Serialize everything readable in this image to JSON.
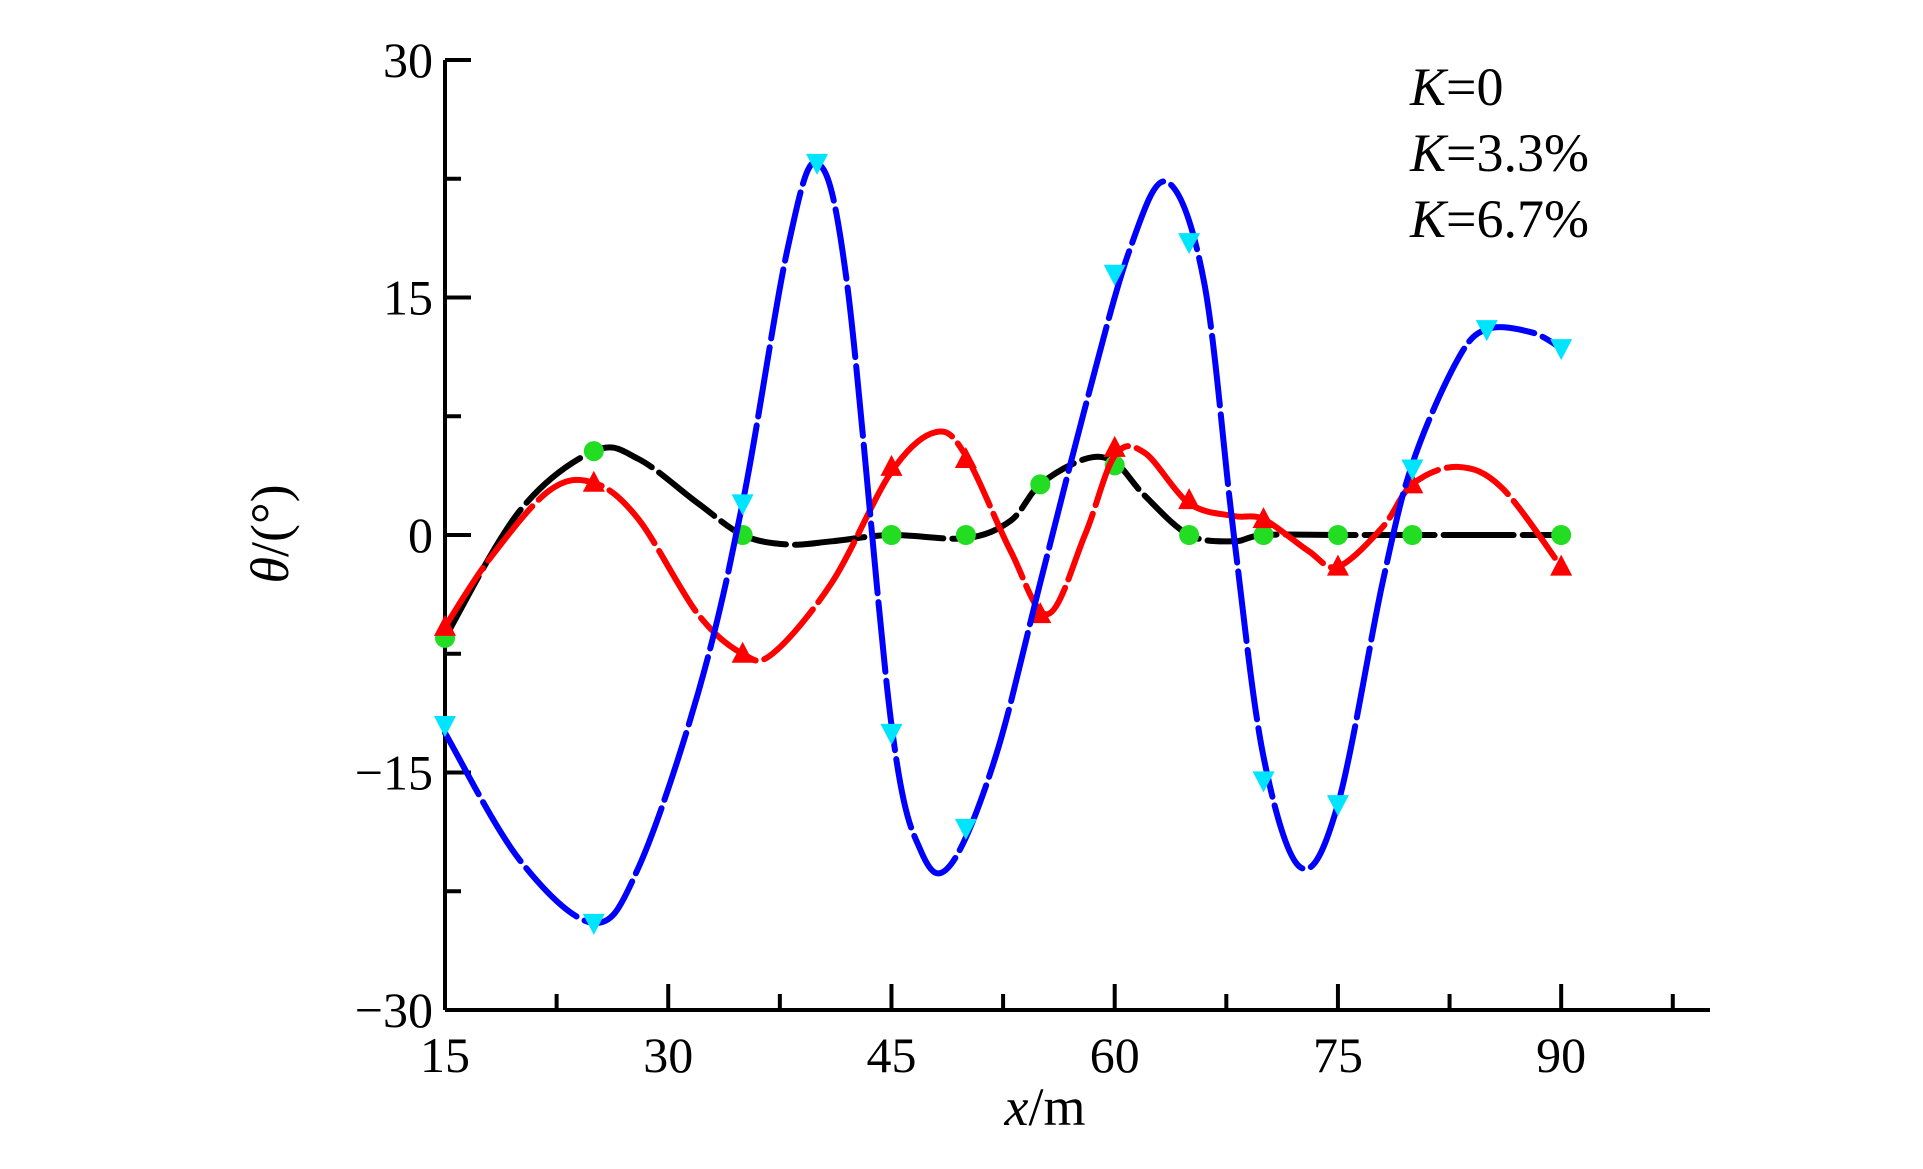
{
  "chart_data": {
    "type": "line",
    "xlabel": "x/m",
    "ylabel": "θ/(°)",
    "xlim": [
      15,
      100
    ],
    "ylim": [
      -30,
      30
    ],
    "xticks": [
      15,
      30,
      45,
      60,
      75,
      90
    ],
    "yticks": [
      -30,
      -15,
      0,
      15,
      30
    ],
    "grid": false,
    "legend_position": "top-right",
    "legend": [
      "K=0",
      "K=3.3%",
      "K=6.7%"
    ],
    "series": [
      {
        "name": "K=0",
        "line_color": "#000000",
        "marker": "circle",
        "marker_color": "#22dd22",
        "x": [
          15,
          20,
          25,
          28,
          32,
          35,
          38,
          41,
          45,
          50,
          53,
          55,
          58,
          60,
          62,
          65,
          68,
          70,
          75,
          80,
          85,
          90
        ],
        "y": [
          -6.5,
          1.5,
          5.3,
          4.8,
          2.0,
          0.0,
          -0.6,
          -0.4,
          0.0,
          -0.2,
          0.9,
          3.2,
          4.8,
          4.6,
          2.5,
          0.0,
          -0.4,
          0.0,
          0.0,
          0.0,
          0.0,
          0.0
        ],
        "marker_x": [
          15,
          25,
          35,
          45,
          50,
          55,
          60,
          65,
          70,
          75,
          80,
          90
        ],
        "marker_y": [
          -6.5,
          5.3,
          0.0,
          0.0,
          0.0,
          3.2,
          4.4,
          0.0,
          0.0,
          0.0,
          0.0,
          0.0
        ]
      },
      {
        "name": "K=3.3%",
        "line_color": "#ff0000",
        "marker": "triangle-up",
        "marker_color": "#ff0000",
        "x": [
          15,
          18,
          22,
          25,
          28,
          32,
          35,
          37,
          41,
          45,
          48,
          50,
          53,
          55.5,
          58,
          60,
          62,
          65,
          68,
          70,
          73,
          75,
          78,
          80,
          83,
          86,
          90
        ],
        "y": [
          -5.8,
          -1.5,
          2.8,
          3.3,
          1.0,
          -5.0,
          -7.5,
          -7.5,
          -3.0,
          4.0,
          6.5,
          5.0,
          -1.0,
          -5.0,
          0.0,
          5.0,
          5.2,
          2.0,
          1.2,
          1.0,
          -1.0,
          -2.0,
          0.5,
          3.2,
          4.3,
          3.0,
          -2.0
        ],
        "marker_x": [
          15,
          25,
          35,
          45,
          50,
          55,
          60,
          65,
          70,
          75,
          80,
          90
        ],
        "marker_y": [
          -5.8,
          3.3,
          -7.5,
          4.3,
          4.8,
          -5.0,
          5.5,
          2.2,
          1.0,
          -2.0,
          3.2,
          -2.0
        ]
      },
      {
        "name": "K=6.7%",
        "line_color": "#0000ff",
        "marker": "triangle-down",
        "marker_color": "#00e5ff",
        "x": [
          15,
          20,
          25,
          28,
          32,
          35,
          38,
          40,
          42,
          45,
          47,
          49,
          52,
          55,
          58,
          61,
          63.5,
          66,
          68,
          70,
          72.5,
          75,
          78,
          80,
          83,
          85,
          88,
          90
        ],
        "y": [
          -12.5,
          -20.5,
          -24.5,
          -21.0,
          -10.0,
          2.0,
          18.0,
          23.5,
          16.0,
          -12.0,
          -20.0,
          -20.8,
          -14.0,
          -3.0,
          8.0,
          18.0,
          22.3,
          16.0,
          0.0,
          -14.0,
          -21.0,
          -17.0,
          -3.0,
          4.5,
          11.0,
          13.0,
          12.8,
          11.8
        ],
        "marker_x": [
          15,
          25,
          35,
          40,
          45,
          50,
          60,
          65,
          70,
          75,
          80,
          85,
          90
        ],
        "marker_y": [
          -12.0,
          -24.5,
          2.0,
          23.5,
          -12.5,
          -18.5,
          16.5,
          18.5,
          -15.5,
          -17.0,
          4.2,
          13.0,
          11.8
        ]
      }
    ]
  }
}
